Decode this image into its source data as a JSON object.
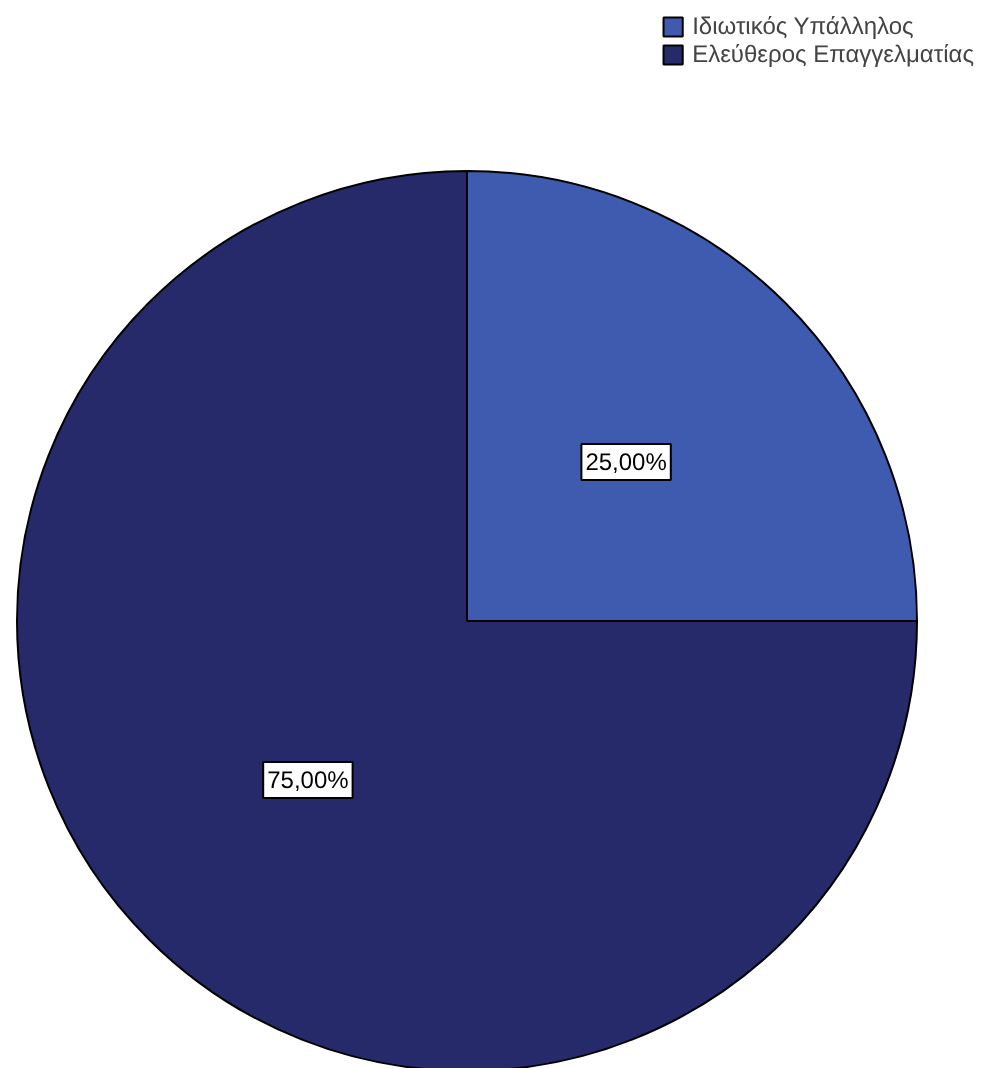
{
  "chart_data": {
    "type": "pie",
    "categories": [
      "Ιδιωτικός Υπάλληλος",
      "Ελεύθερος Επαγγελματίας"
    ],
    "values": [
      25,
      75
    ],
    "colors": [
      "#3f5bb0",
      "#262a6b"
    ],
    "value_labels": [
      "25,00%",
      "75,00%"
    ],
    "legend": "top right"
  }
}
